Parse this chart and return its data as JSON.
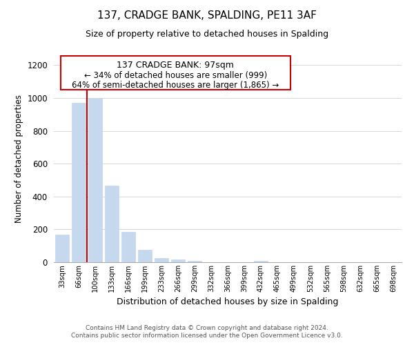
{
  "title": "137, CRADGE BANK, SPALDING, PE11 3AF",
  "subtitle": "Size of property relative to detached houses in Spalding",
  "xlabel": "Distribution of detached houses by size in Spalding",
  "ylabel": "Number of detached properties",
  "bar_color": "#c5d8ed",
  "highlight_bar_color": "#cc0000",
  "categories": [
    "33sqm",
    "66sqm",
    "100sqm",
    "133sqm",
    "166sqm",
    "199sqm",
    "233sqm",
    "266sqm",
    "299sqm",
    "332sqm",
    "366sqm",
    "399sqm",
    "432sqm",
    "465sqm",
    "499sqm",
    "532sqm",
    "565sqm",
    "598sqm",
    "632sqm",
    "665sqm",
    "698sqm"
  ],
  "values": [
    170,
    970,
    1000,
    465,
    185,
    75,
    25,
    15,
    10,
    0,
    0,
    0,
    10,
    0,
    0,
    0,
    0,
    0,
    0,
    0,
    0
  ],
  "ylim": [
    0,
    1260
  ],
  "yticks": [
    0,
    200,
    400,
    600,
    800,
    1000,
    1200
  ],
  "annotation_title": "137 CRADGE BANK: 97sqm",
  "annotation_line1": "← 34% of detached houses are smaller (999)",
  "annotation_line2": "64% of semi-detached houses are larger (1,865) →",
  "vline_bar_index": 1.5,
  "footer1": "Contains HM Land Registry data © Crown copyright and database right 2024.",
  "footer2": "Contains public sector information licensed under the Open Government Licence v3.0.",
  "background_color": "#ffffff",
  "grid_color": "#d8d8d8"
}
